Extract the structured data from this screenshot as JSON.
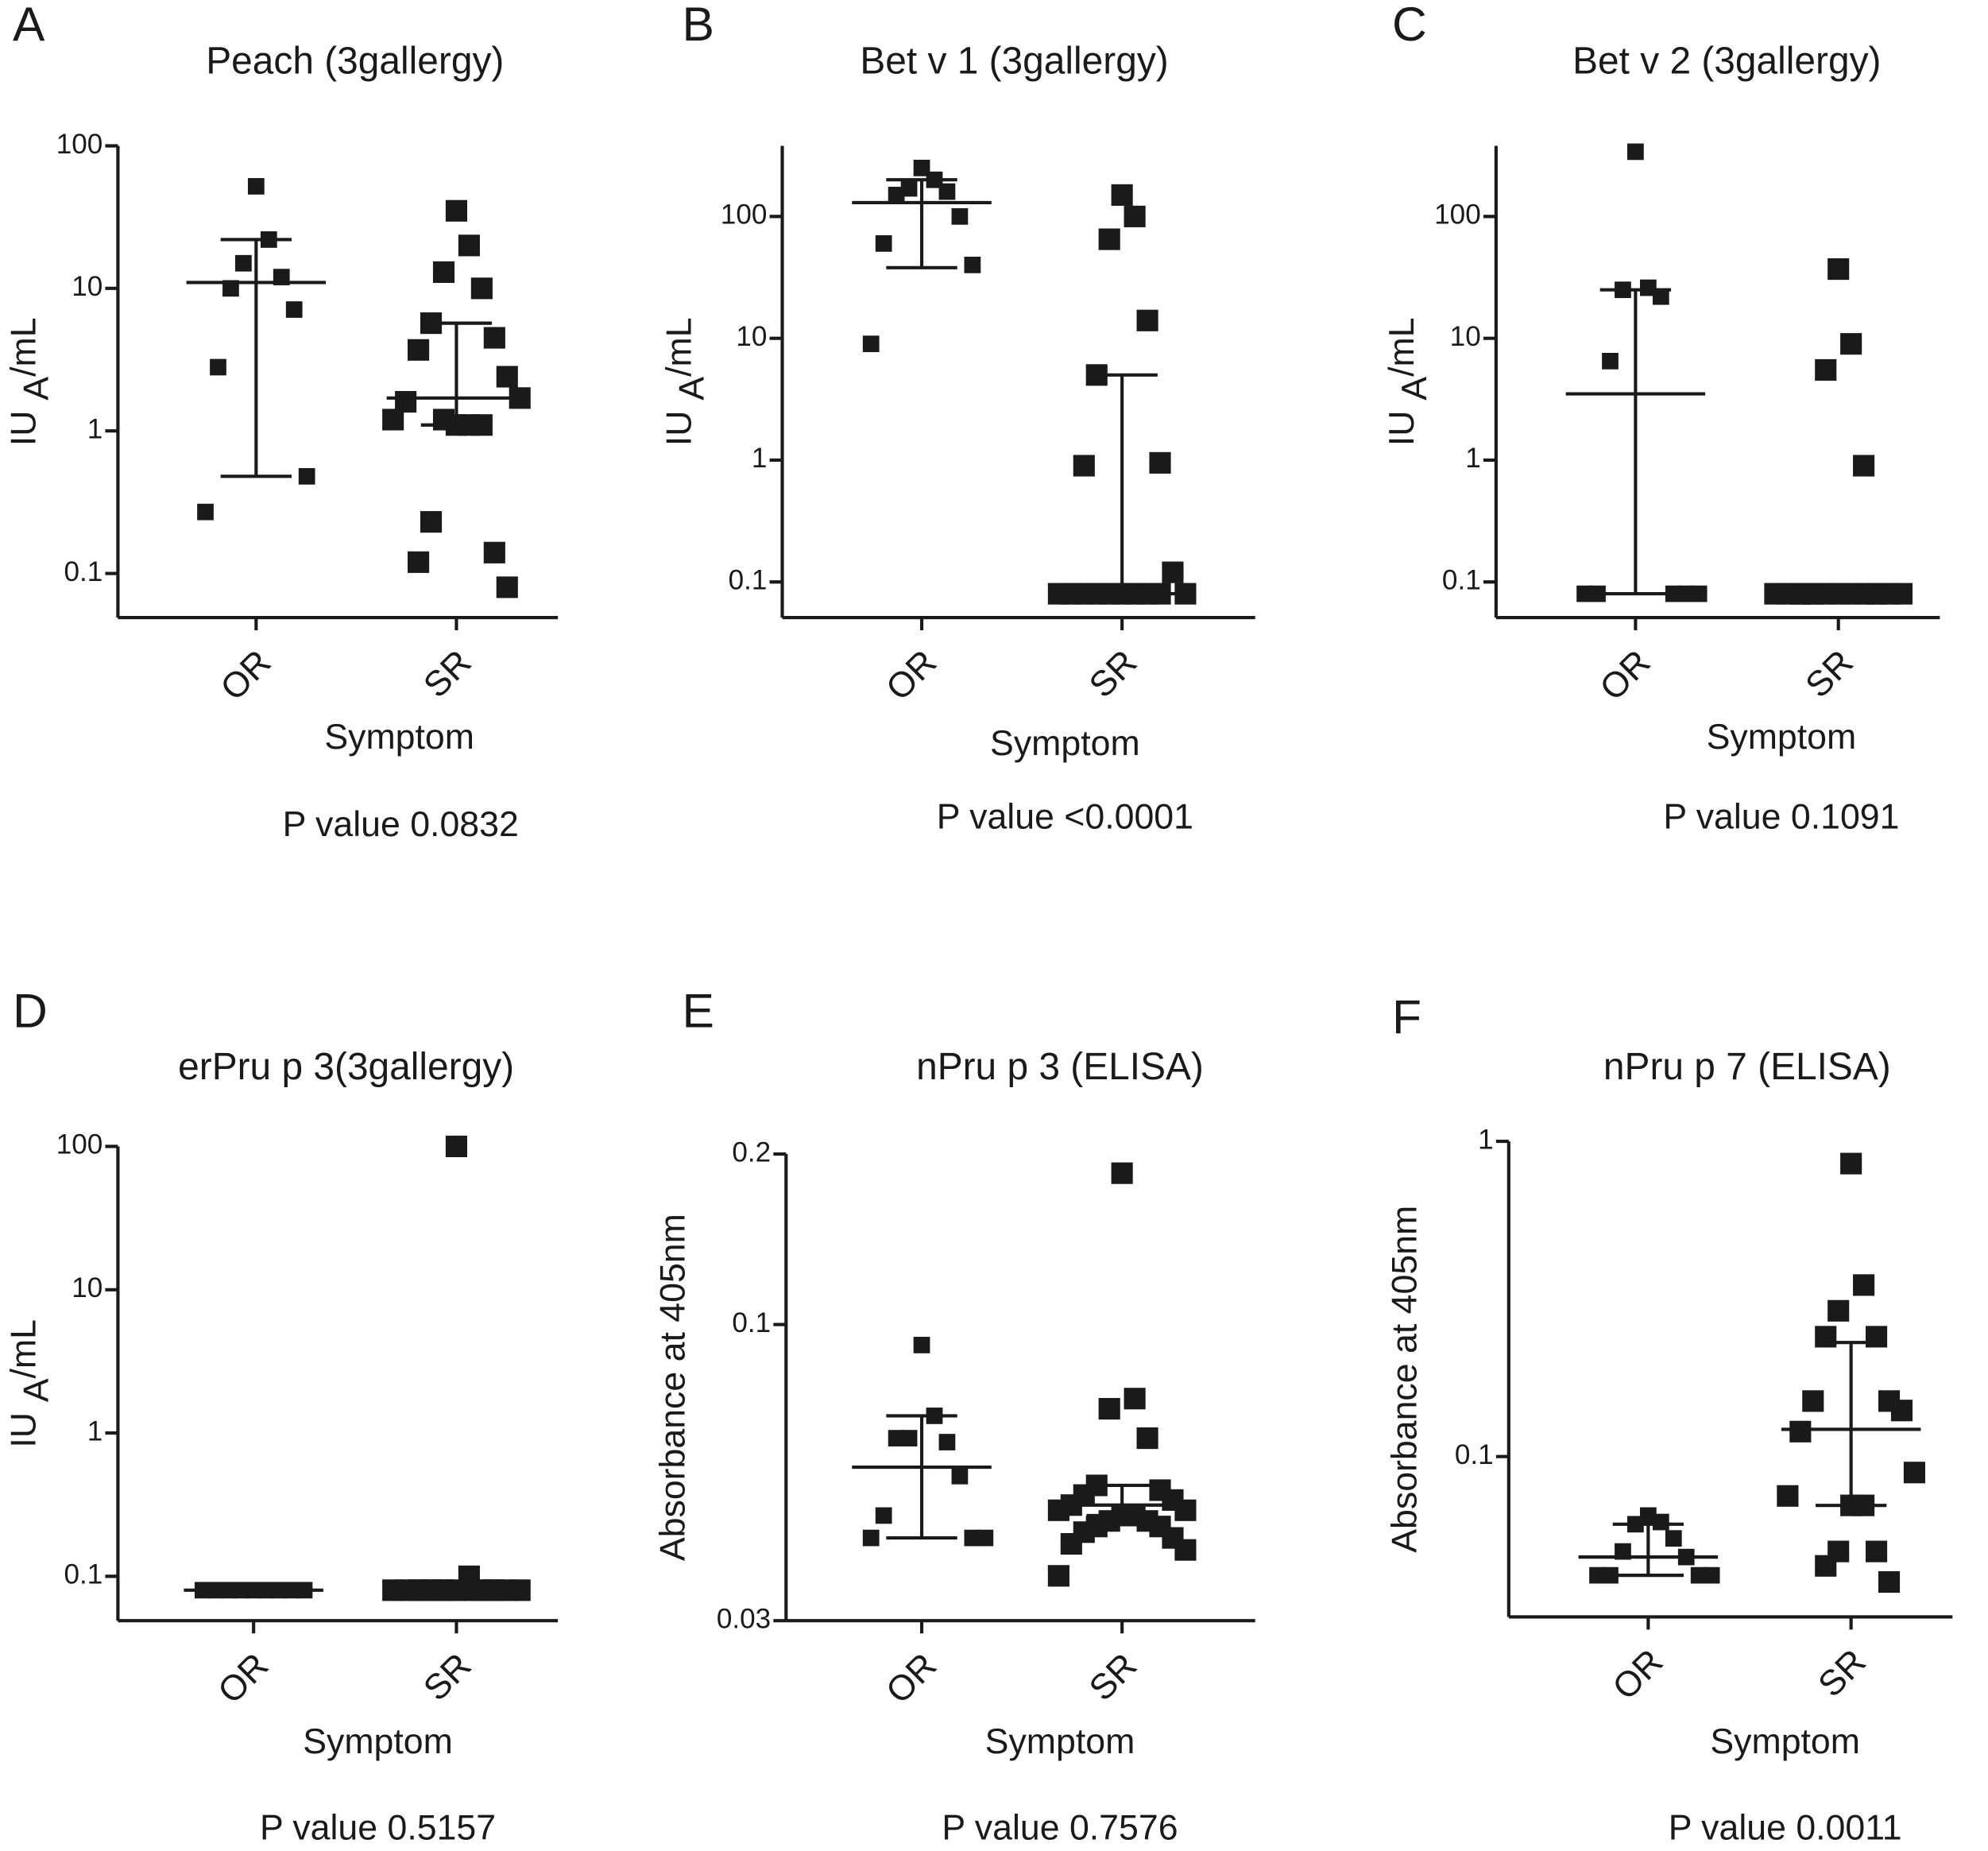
{
  "chart_data": [
    {
      "type": "scatter",
      "panel": "A",
      "title": "Peach (3gallergy)",
      "ylabel": "IU",
      "ylabel_sub": "A",
      "ylabel_suffix": "/mL",
      "xlabel": "Symptom",
      "note": "P value 0.0832",
      "categories": [
        "OR",
        "SR"
      ],
      "log_y": true,
      "ylim": [
        0.049,
        100
      ],
      "yticks": [
        0.1,
        1,
        10,
        100
      ],
      "values": [
        [
          52,
          22,
          15,
          12,
          10,
          7.1,
          2.8,
          0.48,
          0.27
        ],
        [
          35,
          20,
          13,
          10,
          5.7,
          4.5,
          3.7,
          2.4,
          1.6,
          1.7,
          1.2,
          1.1,
          1.1,
          1.2,
          1.1,
          0.23,
          0.14,
          0.12,
          0.08
        ]
      ],
      "median": [
        11,
        1.7
      ],
      "whisker_low": [
        0.48,
        1.1
      ],
      "whisker_high": [
        22,
        5.7
      ],
      "color": "#1a1a1a"
    },
    {
      "type": "scatter",
      "panel": "B",
      "title": "Bet v 1 (3gallergy)",
      "ylabel": "IU",
      "ylabel_sub": "A",
      "ylabel_suffix": "/mL",
      "xlabel": "Symptom",
      "note": "P value <0.0001",
      "categories": [
        "OR",
        "SR"
      ],
      "log_y": true,
      "ylim": [
        0.051,
        380
      ],
      "yticks": [
        0.1,
        1,
        10,
        100
      ],
      "values": [
        [
          250,
          200,
          170,
          160,
          150,
          100,
          60,
          40,
          9
        ],
        [
          150,
          100,
          65,
          14,
          5,
          0.95,
          0.9,
          0.12,
          0.08,
          0.08,
          0.08,
          0.08,
          0.08,
          0.08,
          0.08,
          0.08,
          0.08,
          0.08
        ]
      ],
      "median": [
        130,
        0.08
      ],
      "whisker_low": [
        38,
        0.08
      ],
      "whisker_high": [
        200,
        5
      ],
      "color": "#1a1a1a"
    },
    {
      "type": "scatter",
      "panel": "C",
      "title": "Bet v 2 (3gallergy)",
      "ylabel": "IU",
      "ylabel_sub": "A",
      "ylabel_suffix": "/mL",
      "xlabel": "Symptom",
      "note": "P value 0.1091",
      "categories": [
        "OR",
        "SR"
      ],
      "log_y": true,
      "ylim": [
        0.051,
        380
      ],
      "yticks": [
        0.1,
        1,
        10,
        100
      ],
      "values": [
        [
          340,
          26,
          25,
          22,
          6.5,
          0.08,
          0.08,
          0.08,
          0.08,
          0.08
        ],
        [
          37,
          9,
          5.5,
          0.9,
          0.08,
          0.08,
          0.08,
          0.08,
          0.08,
          0.08,
          0.08,
          0.08,
          0.08,
          0.08,
          0.08,
          0.08,
          0.08,
          0.08
        ]
      ],
      "median": [
        3.5,
        0.08
      ],
      "whisker_low": [
        0.08,
        null
      ],
      "whisker_high": [
        25,
        null
      ],
      "color": "#1a1a1a"
    },
    {
      "type": "scatter",
      "panel": "D",
      "title": "erPru p 3(3gallergy)",
      "ylabel": "IU",
      "ylabel_sub": "A",
      "ylabel_suffix": "/mL",
      "xlabel": "Symptom",
      "note": "P value 0.5157",
      "categories": [
        "OR",
        "SR"
      ],
      "log_y": true,
      "ylim": [
        0.049,
        100
      ],
      "yticks": [
        0.1,
        1,
        10,
        100
      ],
      "values": [
        [
          0.08,
          0.08,
          0.08,
          0.08,
          0.08,
          0.08,
          0.08,
          0.08,
          0.08
        ],
        [
          100,
          0.1,
          0.08,
          0.08,
          0.08,
          0.08,
          0.08,
          0.08,
          0.08,
          0.08,
          0.08,
          0.08,
          0.08,
          0.08,
          0.08,
          0.08,
          0.08,
          0.08
        ]
      ],
      "median": [
        0.08,
        0.08
      ],
      "color": "#1a1a1a"
    },
    {
      "type": "scatter",
      "panel": "E",
      "title": "nPru p 3 (ELISA)",
      "ylabel": "Absorbance at 405nm",
      "xlabel": "Symptom",
      "note": "P value 0.7576",
      "categories": [
        "OR",
        "SR"
      ],
      "log_y": true,
      "ylim": [
        0.03,
        0.2
      ],
      "yticks": [
        0.03,
        0.1,
        0.2
      ],
      "values": [
        [
          0.092,
          0.069,
          0.063,
          0.062,
          0.063,
          0.054,
          0.046,
          0.042,
          0.042,
          0.042
        ],
        [
          0.185,
          0.074,
          0.071,
          0.063,
          0.052,
          0.051,
          0.05,
          0.049,
          0.048,
          0.047,
          0.047,
          0.046,
          0.046,
          0.045,
          0.045,
          0.044,
          0.044,
          0.043,
          0.042,
          0.041,
          0.04,
          0.036
        ]
      ],
      "median": [
        0.056,
        0.048
      ],
      "whisker_low": [
        0.042,
        0.046
      ],
      "whisker_high": [
        0.069,
        0.052
      ],
      "color": "#1a1a1a"
    },
    {
      "type": "scatter",
      "panel": "F",
      "title": "nPru p 7 (ELISA)",
      "ylabel": "Absorbance at 405nm",
      "xlabel": "Symptom",
      "note": "P value 0.0011",
      "categories": [
        "OR",
        "SR"
      ],
      "log_y": true,
      "ylim": [
        0.031,
        1
      ],
      "yticks": [
        0.1,
        1
      ],
      "values": [
        [
          0.065,
          0.062,
          0.061,
          0.055,
          0.05,
          0.048,
          0.042,
          0.042,
          0.042,
          0.042
        ],
        [
          0.85,
          0.35,
          0.29,
          0.24,
          0.24,
          0.15,
          0.15,
          0.14,
          0.12,
          0.089,
          0.075,
          0.07,
          0.07,
          0.05,
          0.05,
          0.045,
          0.04
        ]
      ],
      "median": [
        0.048,
        0.122
      ],
      "whisker_low": [
        0.042,
        0.07
      ],
      "whisker_high": [
        0.061,
        0.23
      ],
      "color": "#1a1a1a"
    }
  ]
}
